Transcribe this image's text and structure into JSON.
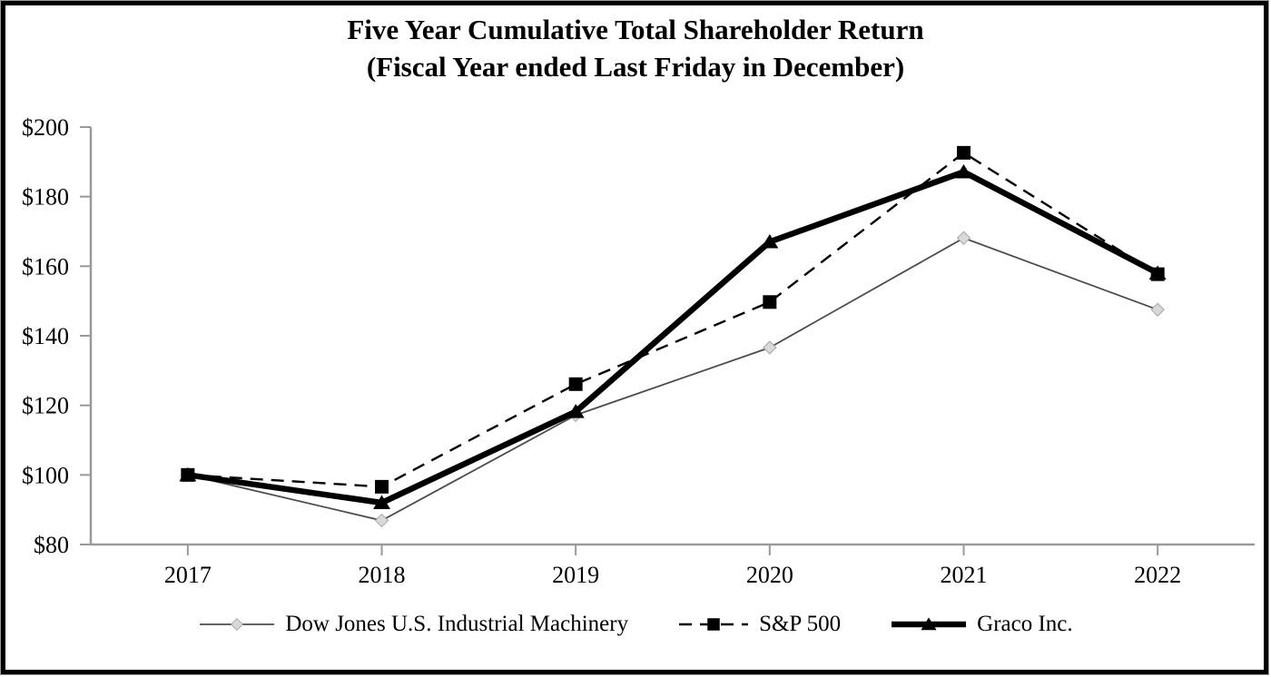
{
  "chart_data": {
    "type": "line",
    "title": "Five Year Cumulative Total Shareholder Return",
    "subtitle": "(Fiscal Year ended Last Friday in December)",
    "categories": [
      "2017",
      "2018",
      "2019",
      "2020",
      "2021",
      "2022"
    ],
    "ylim": [
      80,
      200
    ],
    "y_tick_step": 20,
    "y_ticks": [
      {
        "value": 80,
        "label": "$80"
      },
      {
        "value": 100,
        "label": "$100"
      },
      {
        "value": 120,
        "label": "$120"
      },
      {
        "value": 140,
        "label": "$140"
      },
      {
        "value": 160,
        "label": "$160"
      },
      {
        "value": 180,
        "label": "$180"
      },
      {
        "value": 200,
        "label": "$200"
      }
    ],
    "grid": false,
    "legend_position": "bottom",
    "axis_color": "#999999",
    "series": [
      {
        "name": "Dow Jones U.S. Industrial Machinery",
        "marker": "diamond",
        "line_style": "thin",
        "color": "#4d4d4d",
        "marker_fill": "#d9d9d9",
        "marker_stroke": "#a6a6a6",
        "values": [
          100,
          86.9,
          117.2,
          136.6,
          168.1,
          147.5
        ]
      },
      {
        "name": "S&P 500",
        "marker": "square",
        "line_style": "dashed",
        "color": "#000000",
        "marker_fill": "#000000",
        "marker_stroke": "#000000",
        "values": [
          100,
          96.6,
          126.1,
          149.7,
          192.6,
          157.7
        ]
      },
      {
        "name": "Graco Inc.",
        "marker": "triangle",
        "line_style": "thick",
        "color": "#000000",
        "marker_fill": "#000000",
        "marker_stroke": "#000000",
        "values": [
          100,
          92.0,
          118.2,
          167.0,
          187.1,
          158.0
        ]
      }
    ]
  }
}
